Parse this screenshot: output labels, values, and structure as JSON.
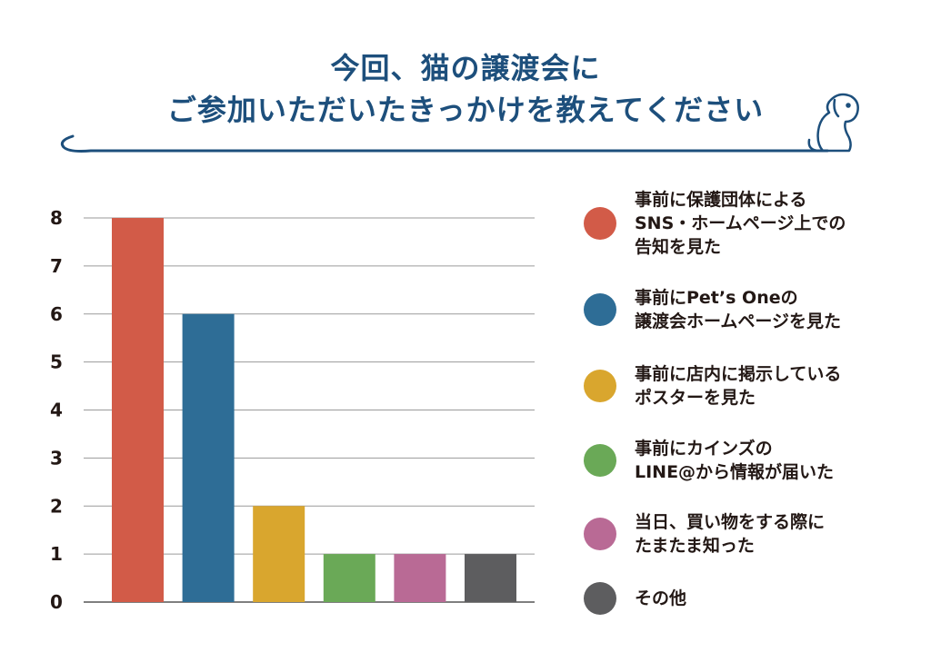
{
  "title": {
    "line1": "今回、猫の譲渡会に",
    "line2": "ご参加いただいたきっかけを教えてください"
  },
  "chart_data": {
    "type": "bar",
    "categories": [
      "事前に保護団体による\nSNS・ホームページ上での\n告知を見た",
      "事前にPet’s Oneの\n譲渡会ホームページを見た",
      "事前に店内に掲示している\nポスターを見た",
      "事前にカインズの\nLINE@から情報が届いた",
      "当日、買い物をする際に\nたまたま知った",
      "その他"
    ],
    "values": [
      8,
      6,
      2,
      1,
      1,
      1
    ],
    "colors": [
      "#d25b48",
      "#2e6d96",
      "#d9a62e",
      "#6aa957",
      "#b96a95",
      "#5d5d5f"
    ],
    "yticks": [
      "0",
      "1",
      "2",
      "3",
      "4",
      "5",
      "6",
      "7",
      "8"
    ],
    "ylim": [
      0,
      8
    ],
    "grid": true,
    "legend_position": "right"
  }
}
